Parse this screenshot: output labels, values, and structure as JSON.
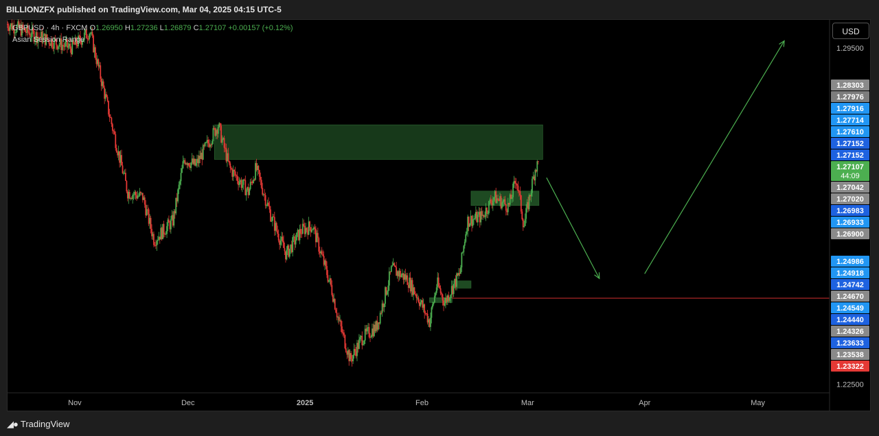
{
  "header": {
    "title": "BILLIONZFX published on TradingView.com, Mar 04, 2025 04:15 UTC-5"
  },
  "legend": {
    "symbol": "GBPUSD · 4h · FXCM",
    "o_label": "O",
    "o_value": "1.26950",
    "h_label": "H",
    "h_value": "1.27236",
    "l_label": "L",
    "l_value": "1.26879",
    "c_label": "C",
    "c_value": "1.27107",
    "change": "+0.00157 (+0.12%)",
    "indicator": "Asian Session Range"
  },
  "currency_button": "USD",
  "footer": {
    "brand": "TradingView"
  },
  "chart_data": {
    "type": "candlestick",
    "symbol": "GBPUSD",
    "interval": "4h",
    "ylim": [
      1.2232,
      1.301
    ],
    "y_ticks": [
      "1.29500",
      "1.22500"
    ],
    "x_ticks": [
      {
        "label": "Nov",
        "date": "2024-11-01"
      },
      {
        "label": "Dec",
        "date": "2024-12-01"
      },
      {
        "label": "2025",
        "date": "2025-01-01"
      },
      {
        "label": "Feb",
        "date": "2025-02-01"
      },
      {
        "label": "Mar",
        "date": "2025-03-01"
      },
      {
        "label": "Apr",
        "date": "2025-04-01"
      },
      {
        "label": "May",
        "date": "2025-05-01"
      }
    ],
    "x_range": [
      "2024-10-14",
      "2025-05-20"
    ],
    "price_path": [
      {
        "date": "2024-10-14",
        "price": 1.3
      },
      {
        "date": "2024-10-22",
        "price": 1.2975
      },
      {
        "date": "2024-10-31",
        "price": 1.295
      },
      {
        "date": "2024-11-05",
        "price": 1.2985
      },
      {
        "date": "2024-11-12",
        "price": 1.275
      },
      {
        "date": "2024-11-15",
        "price": 1.265
      },
      {
        "date": "2024-11-19",
        "price": 1.264
      },
      {
        "date": "2024-11-22",
        "price": 1.255
      },
      {
        "date": "2024-11-27",
        "price": 1.259
      },
      {
        "date": "2024-11-30",
        "price": 1.272
      },
      {
        "date": "2024-12-03",
        "price": 1.2705
      },
      {
        "date": "2024-12-09",
        "price": 1.279
      },
      {
        "date": "2024-12-12",
        "price": 1.27
      },
      {
        "date": "2024-12-17",
        "price": 1.265
      },
      {
        "date": "2024-12-19",
        "price": 1.27
      },
      {
        "date": "2024-12-23",
        "price": 1.26
      },
      {
        "date": "2024-12-27",
        "price": 1.252
      },
      {
        "date": "2024-12-31",
        "price": 1.257
      },
      {
        "date": "2025-01-03",
        "price": 1.258
      },
      {
        "date": "2025-01-08",
        "price": 1.245
      },
      {
        "date": "2025-01-10",
        "price": 1.238
      },
      {
        "date": "2025-01-13",
        "price": 1.23
      },
      {
        "date": "2025-01-16",
        "price": 1.2345
      },
      {
        "date": "2025-01-20",
        "price": 1.237
      },
      {
        "date": "2025-01-24",
        "price": 1.249
      },
      {
        "date": "2025-01-28",
        "price": 1.247
      },
      {
        "date": "2025-01-31",
        "price": 1.243
      },
      {
        "date": "2025-02-03",
        "price": 1.238
      },
      {
        "date": "2025-02-05",
        "price": 1.246
      },
      {
        "date": "2025-02-07",
        "price": 1.242
      },
      {
        "date": "2025-02-11",
        "price": 1.248
      },
      {
        "date": "2025-02-13",
        "price": 1.259
      },
      {
        "date": "2025-02-17",
        "price": 1.26
      },
      {
        "date": "2025-02-20",
        "price": 1.264
      },
      {
        "date": "2025-02-24",
        "price": 1.262
      },
      {
        "date": "2025-02-26",
        "price": 1.268
      },
      {
        "date": "2025-02-28",
        "price": 1.258
      },
      {
        "date": "2025-03-03",
        "price": 1.27
      },
      {
        "date": "2025-03-04",
        "price": 1.27107
      }
    ],
    "zones": [
      {
        "name": "supply-zone",
        "x0": "2024-12-08",
        "x1": "2025-03-05",
        "y0": 1.2718,
        "y1": 1.279,
        "color": "#17391a"
      },
      {
        "name": "demand-zone",
        "x0": "2025-02-14",
        "x1": "2025-03-04",
        "y0": 1.2622,
        "y1": 1.2652,
        "color": "#1e4a22"
      },
      {
        "name": "demand-zone-small",
        "x0": "2025-02-09",
        "x1": "2025-02-14",
        "y0": 1.245,
        "y1": 1.2465,
        "color": "#1e4a22"
      },
      {
        "name": "demand-zone-low",
        "x0": "2025-02-03",
        "x1": "2025-02-09",
        "y0": 1.242,
        "y1": 1.243,
        "color": "#1e4a22"
      }
    ],
    "horizontal_line": {
      "date_start": "2025-02-09",
      "price": 1.2429,
      "color": "#d32f2f"
    },
    "arrows": [
      {
        "name": "bearish-projection-arrow",
        "from": {
          "date": "2025-03-06",
          "price": 1.268
        },
        "to": {
          "date": "2025-03-20",
          "price": 1.247
        }
      },
      {
        "name": "bullish-projection-arrow",
        "from": {
          "date": "2025-04-01",
          "price": 1.248
        },
        "to": {
          "date": "2025-05-08",
          "price": 1.2965
        }
      }
    ],
    "price_labels": [
      {
        "text": "1.28303",
        "color": "#8a8a8a"
      },
      {
        "text": "1.27976",
        "color": "#7d7d7d"
      },
      {
        "text": "1.27916",
        "color": "#2196f3"
      },
      {
        "text": "1.27714",
        "color": "#2196f3"
      },
      {
        "text": "1.27610",
        "color": "#2196f3"
      },
      {
        "text": "1.27152",
        "color": "#1e62e0"
      },
      {
        "text": "1.27152",
        "color": "#1e62e0"
      },
      {
        "text": "1.27107",
        "sub": "44:09",
        "color": "#4caf50"
      },
      {
        "text": "1.27042",
        "color": "#8a8a8a"
      },
      {
        "text": "1.27020",
        "color": "#8a8a8a"
      },
      {
        "text": "1.26983",
        "color": "#1e62e0"
      },
      {
        "text": "1.26933",
        "color": "#2196f3"
      },
      {
        "text": "1.26900",
        "color": "#8a8a8a"
      },
      {
        "text": "1.24986",
        "color": "#2196f3"
      },
      {
        "text": "1.24918",
        "color": "#2196f3"
      },
      {
        "text": "1.24742",
        "color": "#1e62e0"
      },
      {
        "text": "1.24670",
        "color": "#8a8a8a"
      },
      {
        "text": "1.24549",
        "color": "#2196f3"
      },
      {
        "text": "1.24440",
        "color": "#1e62e0"
      },
      {
        "text": "1.24326",
        "color": "#8a8a8a"
      },
      {
        "text": "1.23633",
        "color": "#1e62e0"
      },
      {
        "text": "1.23538",
        "color": "#8a8a8a"
      },
      {
        "text": "1.23322",
        "color": "#e53935"
      }
    ],
    "colors": {
      "up": "#4caf50",
      "down": "#e53935",
      "background": "#000000",
      "arrow": "#4caf50"
    }
  }
}
